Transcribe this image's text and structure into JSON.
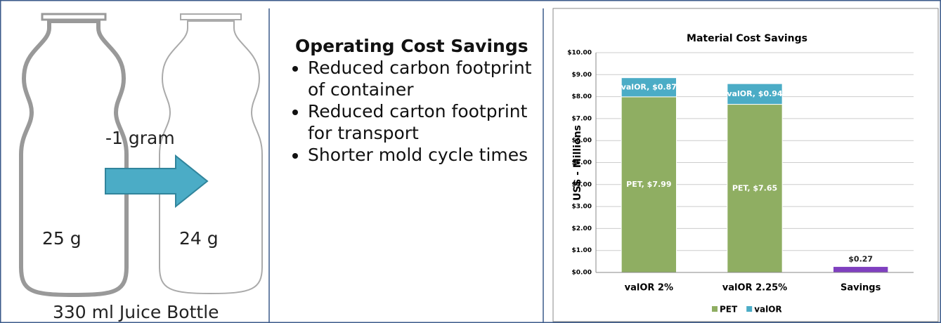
{
  "slide": {
    "bottle_change": "-1 gram",
    "left_weight": "25 g",
    "right_weight": "24 g",
    "bottle_caption": "330 ml Juice Bottle",
    "heading": "Operating Cost Savings",
    "bullets": [
      "Reduced carbon footprint of container",
      "Reduced carton footprint for transport",
      "Shorter mold cycle times"
    ]
  },
  "chart_data": {
    "type": "stacked_bar",
    "title": "Material Cost Savings",
    "y_label": "US$ - Millions",
    "categories": [
      "valOR 2%",
      "valOR 2.25%",
      "Savings"
    ],
    "series": [
      {
        "name": "PET",
        "color": "#8fae62",
        "values": [
          7.99,
          7.65,
          null
        ],
        "value_labels": [
          "PET, $7.99",
          "PET, $7.65",
          null
        ]
      },
      {
        "name": "valOR",
        "color": "#4bacc6",
        "values": [
          0.87,
          0.94,
          null
        ],
        "value_labels": [
          "valOR, $0.87",
          "valOR, $0.94",
          null
        ]
      },
      {
        "color": "#7f3fbf",
        "values": [
          null,
          null,
          0.27
        ],
        "value_labels": [
          null,
          null,
          "$0.27"
        ]
      }
    ],
    "ylim": [
      0,
      10
    ],
    "yticks": [
      {
        "value": 0,
        "label": "$0.00"
      },
      {
        "value": 1,
        "label": "$1.00"
      },
      {
        "value": 2,
        "label": "$2.00"
      },
      {
        "value": 3,
        "label": "$3.00"
      },
      {
        "value": 4,
        "label": "$4.00"
      },
      {
        "value": 5,
        "label": "$5.00"
      },
      {
        "value": 6,
        "label": "$6.00"
      },
      {
        "value": 7,
        "label": "$7.00"
      },
      {
        "value": 8,
        "label": "$8.00"
      },
      {
        "value": 9,
        "label": "$9.00"
      },
      {
        "value": 10,
        "label": "$10.00"
      }
    ],
    "grid": true,
    "legend": "bottom"
  }
}
